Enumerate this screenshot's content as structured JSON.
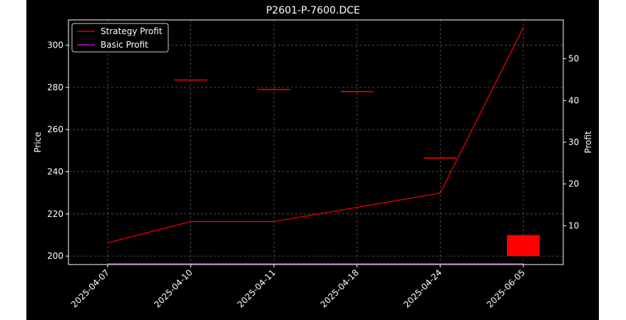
{
  "chart_data": {
    "type": "candlestick-line",
    "title": "P2601-P-7600.DCE",
    "categories": [
      "2025-04-07",
      "2025-04-10",
      "2025-04-11",
      "2025-04-18",
      "2025-04-24",
      "2025-06-05"
    ],
    "ylabel_left": "Price",
    "ylabel_right": "Profit",
    "ylim_left": [
      196,
      312
    ],
    "ylim_right": [
      0.7,
      59.3
    ],
    "yticks_left": [
      200,
      220,
      240,
      260,
      280,
      300
    ],
    "yticks_right": [
      10,
      20,
      30,
      40,
      50
    ],
    "grid": true,
    "legend": {
      "position": "upper left",
      "entries": [
        {
          "label": "Strategy Profit",
          "color": "#ff0000"
        },
        {
          "label": "Basic Profit",
          "color": "#ff00ff"
        }
      ]
    },
    "candles": [
      {
        "date": "2025-04-07",
        "open": null,
        "close": null,
        "color": "#006400"
      },
      {
        "date": "2025-04-10",
        "open": 283.5,
        "close": 283.5,
        "color": "#ff0000"
      },
      {
        "date": "2025-04-11",
        "open": 279,
        "close": 279,
        "color": "#ff0000"
      },
      {
        "date": "2025-04-18",
        "open": 278,
        "close": 278,
        "color": "#ff0000"
      },
      {
        "date": "2025-04-24",
        "open": 246.5,
        "close": 246.5,
        "color": "#ff0000"
      },
      {
        "date": "2025-06-05",
        "open": 210,
        "close": 200,
        "color": "#ff0000"
      }
    ],
    "series": [
      {
        "name": "Strategy Profit",
        "axis": "right",
        "color": "#ff0000",
        "values": [
          5.9,
          11.0,
          11.0,
          14.4,
          17.8,
          57.5
        ]
      },
      {
        "name": "Basic Profit",
        "axis": "right",
        "color": "#ff00ff",
        "values": [
          0.9,
          0.9,
          0.9,
          0.9,
          0.9,
          0.9
        ]
      }
    ]
  },
  "colors": {
    "background": "#000000",
    "axes": "#ffffff",
    "grid": "#808080",
    "text": "#ffffff",
    "figure_margin": "#ffffff"
  }
}
